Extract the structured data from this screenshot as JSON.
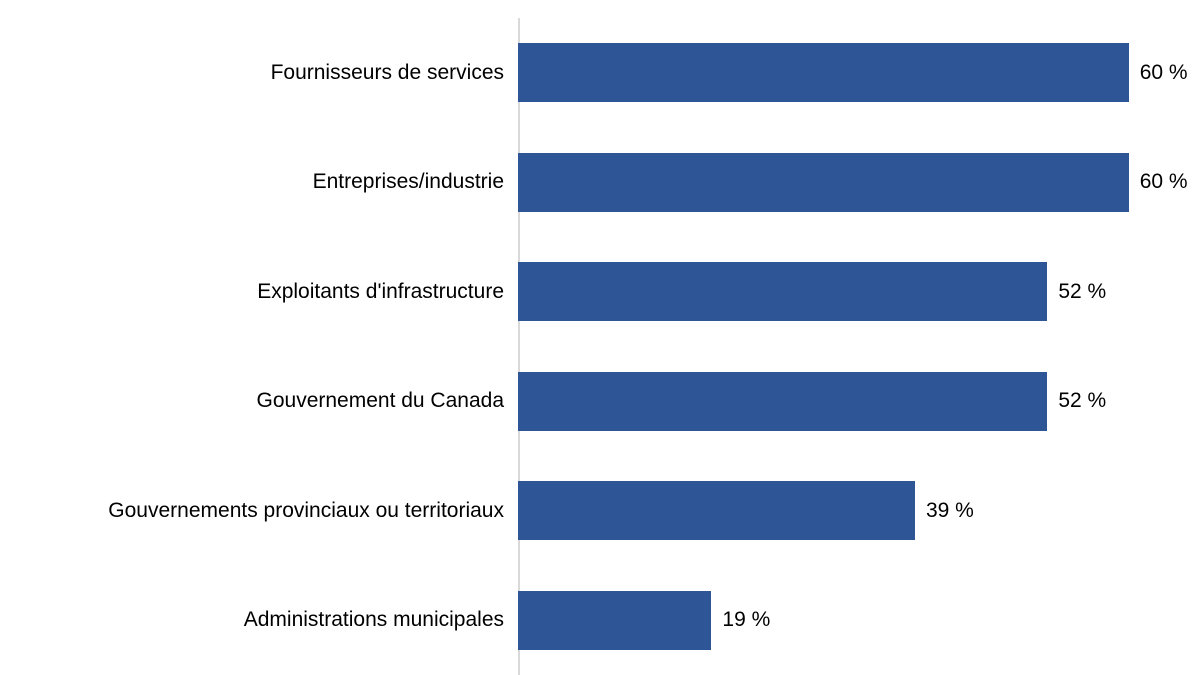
{
  "chart_data": {
    "type": "bar",
    "orientation": "horizontal",
    "title": "",
    "xlabel": "",
    "ylabel": "",
    "categories": [
      "Fournisseurs de services",
      "Entreprises/industrie",
      "Exploitants d'infrastructure",
      "Gouvernement du Canada",
      "Gouvernements provinciaux ou territoriaux",
      "Administrations municipales"
    ],
    "values": [
      60,
      60,
      52,
      52,
      39,
      19
    ],
    "values_display": [
      "60 %",
      "60 %",
      "52 %",
      "52 %",
      "39 %",
      "19 %"
    ],
    "xlim": [
      0,
      67
    ],
    "grid": false,
    "legend": "none",
    "bar_color": "#2E5596",
    "axis_line_color": "#D9D9D9",
    "label_color": "#000000"
  }
}
